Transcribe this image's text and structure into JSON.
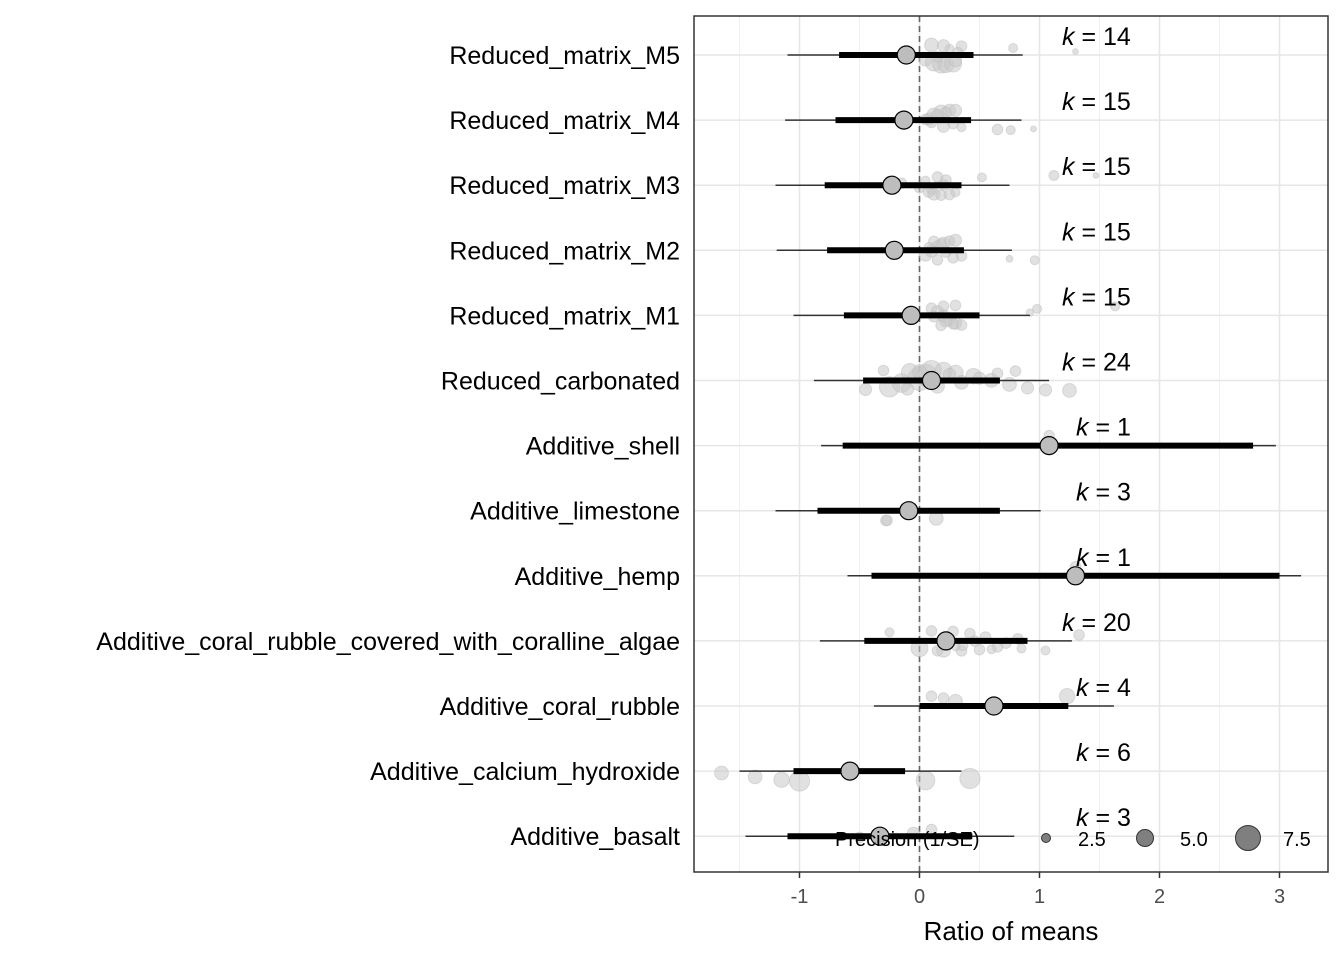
{
  "chart_data": {
    "type": "forest",
    "xlabel": "Ratio of means",
    "x_ticks": [
      -1,
      0,
      1,
      2,
      3
    ],
    "xlim": [
      -1.88,
      3.4
    ],
    "reference_line": 0,
    "grid": true,
    "legend": {
      "title": "Precision (1/SE)",
      "position": "bottom-right",
      "entries": [
        {
          "label": "2.5",
          "value": 2.5
        },
        {
          "label": "5.0",
          "value": 5.0
        },
        {
          "label": "7.5",
          "value": 7.5
        }
      ]
    },
    "k_prefix": "k",
    "rows": [
      {
        "label": "Reduced_matrix_M5",
        "k": "14",
        "estimate": -0.11,
        "ci": [
          -0.67,
          0.45
        ],
        "pi": [
          -1.1,
          0.86
        ],
        "points": [
          [
            0.05,
            4
          ],
          [
            0.12,
            5
          ],
          [
            0.18,
            5
          ],
          [
            0.22,
            4.5
          ],
          [
            0.28,
            5
          ],
          [
            0.3,
            3.5
          ],
          [
            0.15,
            3
          ],
          [
            0.32,
            3
          ],
          [
            0.25,
            2.5
          ],
          [
            0.35,
            3
          ],
          [
            0.1,
            4
          ],
          [
            0.2,
            3.5
          ],
          [
            0.78,
            2.5
          ],
          [
            1.3,
            1.5
          ]
        ]
      },
      {
        "label": "Reduced_matrix_M4",
        "k": "15",
        "estimate": -0.13,
        "ci": [
          -0.7,
          0.43
        ],
        "pi": [
          -1.12,
          0.85
        ],
        "points": [
          [
            0.08,
            3.5
          ],
          [
            0.12,
            4
          ],
          [
            0.18,
            4
          ],
          [
            0.25,
            3.5
          ],
          [
            0.3,
            3.5
          ],
          [
            0.22,
            3
          ],
          [
            0.15,
            3.5
          ],
          [
            0.05,
            3
          ],
          [
            0.28,
            3
          ],
          [
            0.35,
            2.5
          ],
          [
            0.65,
            3
          ],
          [
            0.76,
            2.5
          ],
          [
            0.95,
            1.5
          ],
          [
            0.2,
            3.5
          ],
          [
            0.1,
            3
          ]
        ]
      },
      {
        "label": "Reduced_matrix_M3",
        "k": "15",
        "estimate": -0.23,
        "ci": [
          -0.79,
          0.35
        ],
        "pi": [
          -1.2,
          0.75
        ],
        "points": [
          [
            -0.15,
            3
          ],
          [
            0.0,
            3
          ],
          [
            0.08,
            3.5
          ],
          [
            0.12,
            3.5
          ],
          [
            0.18,
            3
          ],
          [
            0.25,
            3
          ],
          [
            0.3,
            2.5
          ],
          [
            0.1,
            3
          ],
          [
            0.2,
            3
          ],
          [
            0.05,
            2.5
          ],
          [
            0.52,
            2.5
          ],
          [
            1.12,
            2.8
          ],
          [
            1.47,
            1.5
          ],
          [
            0.15,
            3
          ],
          [
            0.22,
            3
          ]
        ]
      },
      {
        "label": "Reduced_matrix_M2",
        "k": "15",
        "estimate": -0.21,
        "ci": [
          -0.77,
          0.37
        ],
        "pi": [
          -1.19,
          0.77
        ],
        "points": [
          [
            0.05,
            3.5
          ],
          [
            0.1,
            3.5
          ],
          [
            0.15,
            3.5
          ],
          [
            0.2,
            3.5
          ],
          [
            0.25,
            3
          ],
          [
            0.3,
            3.5
          ],
          [
            0.12,
            3
          ],
          [
            0.18,
            3
          ],
          [
            0.08,
            3
          ],
          [
            0.22,
            3
          ],
          [
            0.35,
            3
          ],
          [
            0.75,
            1.8
          ],
          [
            0.96,
            2.5
          ],
          [
            0.15,
            3
          ],
          [
            0.28,
            3
          ]
        ]
      },
      {
        "label": "Reduced_matrix_M1",
        "k": "15",
        "estimate": -0.07,
        "ci": [
          -0.63,
          0.5
        ],
        "pi": [
          -1.05,
          0.92
        ],
        "points": [
          [
            0.1,
            3
          ],
          [
            0.15,
            3.5
          ],
          [
            0.2,
            3.5
          ],
          [
            0.25,
            3.5
          ],
          [
            0.3,
            3.5
          ],
          [
            0.35,
            3
          ],
          [
            0.18,
            3
          ],
          [
            0.28,
            3
          ],
          [
            0.22,
            3.5
          ],
          [
            0.12,
            3
          ],
          [
            0.92,
            2
          ],
          [
            0.98,
            2.5
          ],
          [
            1.63,
            2.5
          ],
          [
            0.3,
            3
          ],
          [
            0.2,
            3
          ]
        ]
      },
      {
        "label": "Reduced_carbonated",
        "k": "24",
        "estimate": 0.1,
        "ci": [
          -0.47,
          0.67
        ],
        "pi": [
          -0.88,
          1.08
        ],
        "points": [
          [
            -0.45,
            3.5
          ],
          [
            -0.25,
            6
          ],
          [
            -0.15,
            5.5
          ],
          [
            0.0,
            7
          ],
          [
            0.05,
            6.5
          ],
          [
            -0.08,
            5
          ],
          [
            0.1,
            6
          ],
          [
            0.2,
            5
          ],
          [
            0.3,
            4.5
          ],
          [
            0.45,
            4.5
          ],
          [
            0.6,
            4
          ],
          [
            0.75,
            4
          ],
          [
            0.9,
            3.5
          ],
          [
            1.05,
            3.5
          ],
          [
            1.25,
            4
          ],
          [
            -0.1,
            3.5
          ],
          [
            0.15,
            4
          ],
          [
            0.35,
            4
          ],
          [
            0.5,
            3.5
          ],
          [
            0.25,
            3.5
          ],
          [
            0.0,
            4
          ],
          [
            -0.3,
            3
          ],
          [
            0.8,
            3
          ],
          [
            0.65,
            3
          ]
        ]
      },
      {
        "label": "Additive_shell",
        "k": "1",
        "estimate": 1.08,
        "ci": [
          -0.64,
          2.78
        ],
        "pi": [
          -0.82,
          2.97
        ],
        "points": [
          [
            1.08,
            3
          ]
        ]
      },
      {
        "label": "Additive_limestone",
        "k": "3",
        "estimate": -0.09,
        "ci": [
          -0.85,
          0.67
        ],
        "pi": [
          -1.2,
          1.01
        ],
        "points": [
          [
            -0.28,
            3
          ],
          [
            -0.27,
            3
          ],
          [
            0.14,
            4
          ]
        ]
      },
      {
        "label": "Additive_hemp",
        "k": "1",
        "estimate": 1.3,
        "ci": [
          -0.4,
          3.0
        ],
        "pi": [
          -0.6,
          3.18
        ],
        "points": [
          [
            1.3,
            3
          ]
        ]
      },
      {
        "label": "Additive_coral_rubble_covered_with_coralline_algae",
        "k": "20",
        "estimate": 0.22,
        "ci": [
          -0.46,
          0.9
        ],
        "pi": [
          -0.83,
          1.27
        ],
        "points": [
          [
            0.0,
            5
          ],
          [
            0.2,
            4
          ],
          [
            0.35,
            3
          ],
          [
            0.5,
            3
          ],
          [
            0.65,
            3
          ],
          [
            0.72,
            3
          ],
          [
            0.82,
            3
          ],
          [
            1.33,
            3
          ],
          [
            -0.25,
            2.5
          ],
          [
            0.1,
            3
          ],
          [
            0.28,
            3
          ],
          [
            0.42,
            3
          ],
          [
            0.55,
            3
          ],
          [
            0.46,
            3
          ],
          [
            0.36,
            3
          ],
          [
            0.85,
            2.5
          ],
          [
            1.05,
            2.5
          ],
          [
            0.15,
            3
          ],
          [
            0.6,
            2.5
          ],
          [
            0.3,
            2.5
          ]
        ]
      },
      {
        "label": "Additive_coral_rubble",
        "k": "4",
        "estimate": 0.62,
        "ci": [
          0.0,
          1.24
        ],
        "pi": [
          -0.38,
          1.62
        ],
        "points": [
          [
            0.3,
            4
          ],
          [
            0.2,
            3
          ],
          [
            1.23,
            4.5
          ],
          [
            0.1,
            3
          ]
        ]
      },
      {
        "label": "Additive_calcium_hydroxide",
        "k": "6",
        "estimate": -0.58,
        "ci": [
          -1.05,
          -0.12
        ],
        "pi": [
          -1.5,
          0.35
        ],
        "points": [
          [
            -1.65,
            4
          ],
          [
            -1.37,
            4
          ],
          [
            -1.15,
            4.5
          ],
          [
            -1.0,
            6
          ],
          [
            0.05,
            5.5
          ],
          [
            0.42,
            6
          ]
        ]
      },
      {
        "label": "Additive_basalt",
        "k": "3",
        "estimate": -0.33,
        "ci": [
          -1.1,
          0.44
        ],
        "pi": [
          -1.45,
          0.79
        ],
        "points": [
          [
            -0.5,
            3
          ],
          [
            -0.05,
            3.5
          ],
          [
            0.1,
            3
          ]
        ]
      }
    ]
  }
}
